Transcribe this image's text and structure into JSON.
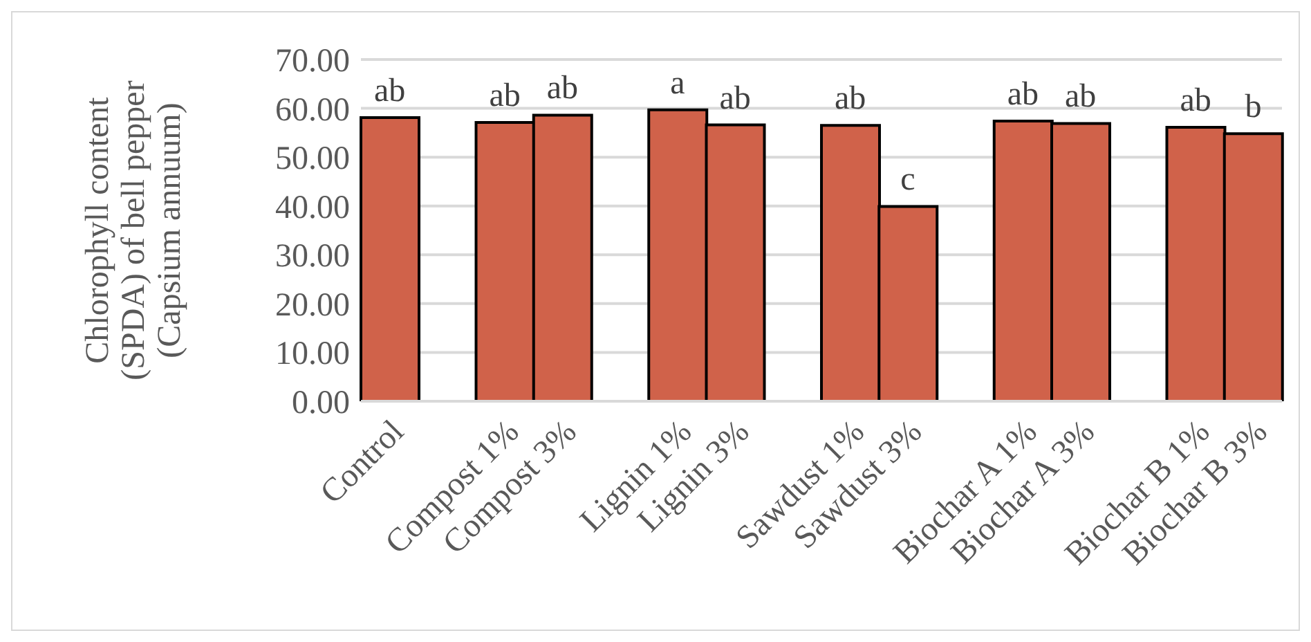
{
  "chart_data": {
    "type": "bar",
    "ylabel": "Chlorophyll content\n(SPDA) of bell pepper\n(Capsium annuum)",
    "categories": [
      "Control",
      null,
      "Compost 1%",
      "Compost 3%",
      null,
      "Lignin 1%",
      "Lignin 3%",
      null,
      "Sawdust 1%",
      "Sawdust 3%",
      null,
      "Biochar A 1%",
      "Biochar A 3%",
      null,
      "Biochar B 1%",
      "Biochar B 3%"
    ],
    "values": [
      58.1,
      null,
      57.1,
      58.6,
      null,
      59.7,
      56.6,
      null,
      56.5,
      39.9,
      null,
      57.4,
      56.9,
      null,
      56.1,
      54.8
    ],
    "color": "#d0624a",
    "ylim": [
      0,
      70
    ],
    "yticks": [
      {
        "value": 0,
        "label": "0.00"
      },
      {
        "value": 10,
        "label": "10.00"
      },
      {
        "value": 20,
        "label": "20.00"
      },
      {
        "value": 30,
        "label": "30.00"
      },
      {
        "value": 40,
        "label": "40.00"
      },
      {
        "value": 50,
        "label": "50.00"
      },
      {
        "value": 60,
        "label": "60.00"
      },
      {
        "value": 70,
        "label": "70.00"
      }
    ],
    "grid": "y",
    "annotations": [
      {
        "text": "ab",
        "x": "Control",
        "y": 58.1
      },
      {
        "text": "ab",
        "x": "Compost 1%",
        "y": 57.1
      },
      {
        "text": "ab",
        "x": "Compost 3%",
        "y": 58.6
      },
      {
        "text": "a",
        "x": "Lignin 1%",
        "y": 59.7
      },
      {
        "text": "ab",
        "x": "Lignin 3%",
        "y": 56.6
      },
      {
        "text": "ab",
        "x": "Sawdust 1%",
        "y": 56.5
      },
      {
        "text": "c",
        "x": "Sawdust 3%",
        "y": 39.9
      },
      {
        "text": "ab",
        "x": "Biochar A 1%",
        "y": 57.4
      },
      {
        "text": "ab",
        "x": "Biochar A 3%",
        "y": 56.9
      },
      {
        "text": "ab",
        "x": "Biochar B 1%",
        "y": 56.1
      },
      {
        "text": "b",
        "x": "Biochar B 3%",
        "y": 54.8
      }
    ]
  }
}
